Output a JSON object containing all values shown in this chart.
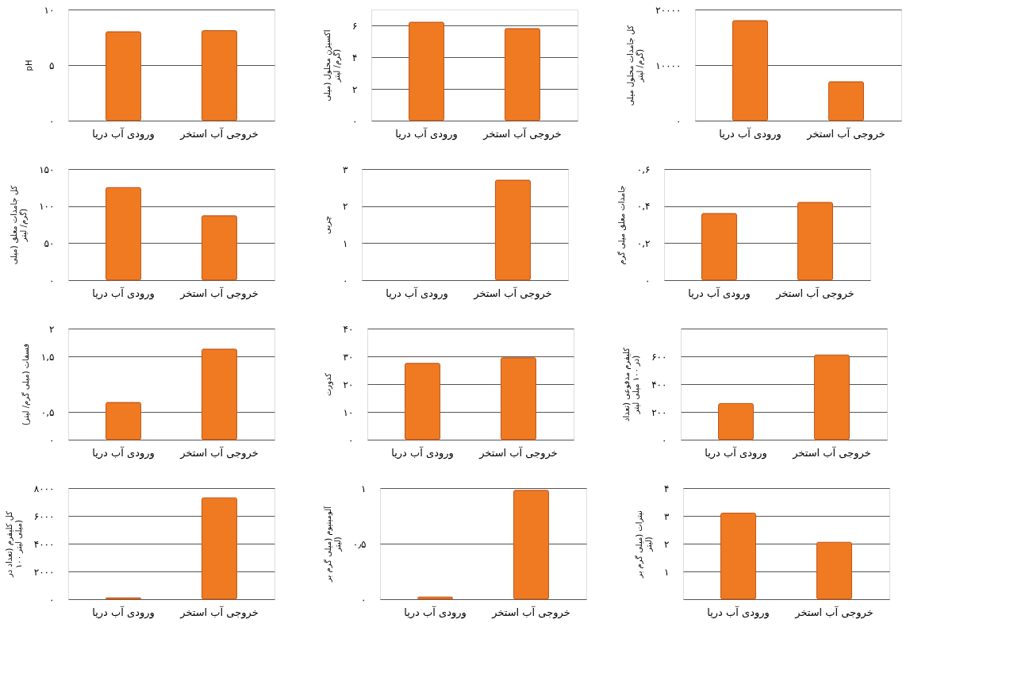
{
  "chart_data": [
    {
      "type": "bar",
      "ylabel": "pH",
      "categories": [
        "ورودی آب دریا",
        "خروجی آب استخر"
      ],
      "values": [
        8.0,
        8.1
      ],
      "color": "#f07a22",
      "ylim": [
        0,
        10
      ],
      "yticks": [
        {
          "value": 0,
          "label": "۰"
        },
        {
          "value": 5,
          "label": "۵"
        },
        {
          "value": 10,
          "label": "۱۰"
        }
      ],
      "grid": "y"
    },
    {
      "type": "bar",
      "ylabel": "اکسیژن محلول (میلی گرم/ لیتر)",
      "categories": [
        "ورودی آب دریا",
        "خروجی آب استخر"
      ],
      "values": [
        6.2,
        5.8
      ],
      "color": "#f07a22",
      "ylim": [
        0,
        7
      ],
      "yticks": [
        {
          "value": 0,
          "label": "۰"
        },
        {
          "value": 2,
          "label": "۲"
        },
        {
          "value": 4,
          "label": "۴"
        },
        {
          "value": 6,
          "label": "۶"
        }
      ],
      "grid": "y"
    },
    {
      "type": "bar",
      "ylabel": "کل جامدات محلول میلی گرم/ لیتر)",
      "categories": [
        "ورودی آب دریا",
        "خروجی آب استخر"
      ],
      "values": [
        18000,
        7000
      ],
      "color": "#f07a22",
      "ylim": [
        0,
        20000
      ],
      "yticks": [
        {
          "value": 0,
          "label": "۰"
        },
        {
          "value": 10000,
          "label": "۱۰۰۰۰"
        },
        {
          "value": 20000,
          "label": "۲۰۰۰۰"
        }
      ],
      "grid": "y"
    },
    {
      "type": "bar",
      "ylabel": "کل جامدات معلق (میلی گرم/ لیتر)",
      "categories": [
        "ورودی آب دریا",
        "خروجی آب استخر"
      ],
      "values": [
        125,
        87
      ],
      "color": "#f07a22",
      "ylim": [
        0,
        150
      ],
      "yticks": [
        {
          "value": 0,
          "label": "۰"
        },
        {
          "value": 50,
          "label": "۵۰"
        },
        {
          "value": 100,
          "label": "۱۰۰"
        },
        {
          "value": 150,
          "label": "۱۵۰"
        }
      ],
      "grid": "y"
    },
    {
      "type": "bar",
      "ylabel": "چربی",
      "categories": [
        "ورودی آب دریا",
        "خروجی آب استخر"
      ],
      "values": [
        null,
        2.7
      ],
      "color": "#f07a22",
      "ylim": [
        0,
        3
      ],
      "yticks": [
        {
          "value": 0,
          "label": "۰"
        },
        {
          "value": 1,
          "label": "۱"
        },
        {
          "value": 2,
          "label": "۲"
        },
        {
          "value": 3,
          "label": "۳"
        }
      ],
      "grid": "y"
    },
    {
      "type": "bar",
      "ylabel": "جامدات معلق میلی گرم",
      "categories": [
        "ورودی آب دریا",
        "خروجی آب استخر"
      ],
      "values": [
        0.36,
        0.42
      ],
      "color": "#f07a22",
      "ylim": [
        0,
        0.6
      ],
      "yticks": [
        {
          "value": 0,
          "label": "۰"
        },
        {
          "value": 0.2,
          "label": "۰,۲"
        },
        {
          "value": 0.4,
          "label": "۰,۴"
        },
        {
          "value": 0.6,
          "label": "۰,۶"
        }
      ],
      "grid": "y"
    },
    {
      "type": "bar",
      "ylabel": "فسفات (میلی گرم/ لیتر)",
      "categories": [
        "ورودی آب دریا",
        "خروجی آب استخر"
      ],
      "values": [
        0.67,
        1.63
      ],
      "color": "#f07a22",
      "ylim": [
        0,
        2
      ],
      "yticks": [
        {
          "value": 0,
          "label": "۰"
        },
        {
          "value": 0.5,
          "label": "۰,۵"
        },
        {
          "value": 1.5,
          "label": "۱,۵"
        },
        {
          "value": 2,
          "label": "۲"
        }
      ],
      "grid": "y"
    },
    {
      "type": "bar",
      "ylabel": "کدورت",
      "categories": [
        "ورودی آب دریا",
        "خروجی آب استخر"
      ],
      "values": [
        27.5,
        29.5
      ],
      "color": "#f07a22",
      "ylim": [
        0,
        40
      ],
      "yticks": [
        {
          "value": 0,
          "label": "۰"
        },
        {
          "value": 10,
          "label": "۱۰"
        },
        {
          "value": 20,
          "label": "۲۰"
        },
        {
          "value": 30,
          "label": "۳۰"
        },
        {
          "value": 40,
          "label": "۴۰"
        }
      ],
      "grid": "y"
    },
    {
      "type": "bar",
      "ylabel": "کلیفرم مدفوعی (تعداد در ۱۰۰ میلی لیتر)",
      "categories": [
        "ورودی آب دریا",
        "خروجی آب استخر"
      ],
      "values": [
        260,
        610
      ],
      "color": "#f07a22",
      "ylim": [
        0,
        800
      ],
      "yticks": [
        {
          "value": 0,
          "label": "۰"
        },
        {
          "value": 200,
          "label": "۲۰۰"
        },
        {
          "value": 400,
          "label": "۴۰۰"
        },
        {
          "value": 600,
          "label": "۶۰۰"
        },
        {
          "value": 800,
          "label": null
        }
      ],
      "grid": "y"
    },
    {
      "type": "bar",
      "ylabel": "کل کلیفرم (تعداد در ۱۰۰ میلی لیتر)",
      "categories": [
        "ورودی آب دریا",
        "خروجی آب استخر"
      ],
      "values": [
        100,
        7300
      ],
      "color": "#f07a22",
      "ylim": [
        0,
        8000
      ],
      "yticks": [
        {
          "value": 0,
          "label": "۰"
        },
        {
          "value": 2000,
          "label": "۲۰۰۰"
        },
        {
          "value": 4000,
          "label": "۴۰۰۰"
        },
        {
          "value": 6000,
          "label": "۶۰۰۰"
        },
        {
          "value": 8000,
          "label": "۸۰۰۰"
        }
      ],
      "grid": "y"
    },
    {
      "type": "bar",
      "ylabel": "آلومینیوم (میلی گرم بر لیتر)",
      "categories": [
        "ورودی آب دریا",
        "خروجی آب استخر"
      ],
      "values": [
        0.02,
        0.98
      ],
      "color": "#f07a22",
      "ylim": [
        0,
        1
      ],
      "yticks": [
        {
          "value": 0,
          "label": "۰"
        },
        {
          "value": 0.5,
          "label": "۰٫۵"
        },
        {
          "value": 1,
          "label": "۱"
        }
      ],
      "grid": "y"
    },
    {
      "type": "bar",
      "ylabel": "نیترات (میلی گرم بر لیتر)",
      "categories": [
        "ورودی آب دریا",
        "خروجی آب استخر"
      ],
      "values": [
        3.1,
        2.05
      ],
      "color": "#f07a22",
      "ylim": [
        0,
        4
      ],
      "yticks": [
        {
          "value": 0,
          "label": null
        },
        {
          "value": 1,
          "label": "۱"
        },
        {
          "value": 2,
          "label": "۲"
        },
        {
          "value": 3,
          "label": "۳"
        },
        {
          "value": 4,
          "label": "۴"
        }
      ],
      "grid": "y"
    }
  ]
}
